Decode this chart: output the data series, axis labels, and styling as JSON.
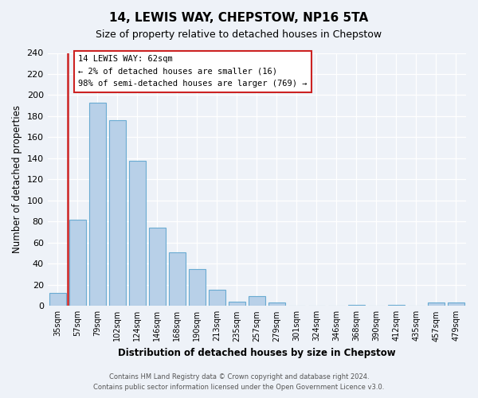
{
  "title": "14, LEWIS WAY, CHEPSTOW, NP16 5TA",
  "subtitle": "Size of property relative to detached houses in Chepstow",
  "xlabel": "Distribution of detached houses by size in Chepstow",
  "ylabel": "Number of detached properties",
  "bar_labels": [
    "35sqm",
    "57sqm",
    "79sqm",
    "102sqm",
    "124sqm",
    "146sqm",
    "168sqm",
    "190sqm",
    "213sqm",
    "235sqm",
    "257sqm",
    "279sqm",
    "301sqm",
    "324sqm",
    "346sqm",
    "368sqm",
    "390sqm",
    "412sqm",
    "435sqm",
    "457sqm",
    "479sqm"
  ],
  "bar_values": [
    12,
    82,
    193,
    176,
    138,
    74,
    51,
    35,
    15,
    4,
    9,
    3,
    0,
    0,
    0,
    1,
    0,
    1,
    0,
    3,
    3
  ],
  "bar_color": "#b8d0e8",
  "bar_edge_color": "#6aabd2",
  "red_line_color": "#cc2222",
  "red_line_index": 1,
  "annotation_text_line1": "14 LEWIS WAY: 62sqm",
  "annotation_text_line2": "← 2% of detached houses are smaller (16)",
  "annotation_text_line3": "98% of semi-detached houses are larger (769) →",
  "annotation_box_color": "#ffffff",
  "annotation_box_edge_color": "#cc2222",
  "ylim": [
    0,
    240
  ],
  "yticks": [
    0,
    20,
    40,
    60,
    80,
    100,
    120,
    140,
    160,
    180,
    200,
    220,
    240
  ],
  "footer_line1": "Contains HM Land Registry data © Crown copyright and database right 2024.",
  "footer_line2": "Contains public sector information licensed under the Open Government Licence v3.0.",
  "bg_color": "#eef2f8",
  "plot_bg_color": "#eef2f8",
  "grid_color": "#ffffff",
  "title_fontsize": 11,
  "subtitle_fontsize": 9
}
